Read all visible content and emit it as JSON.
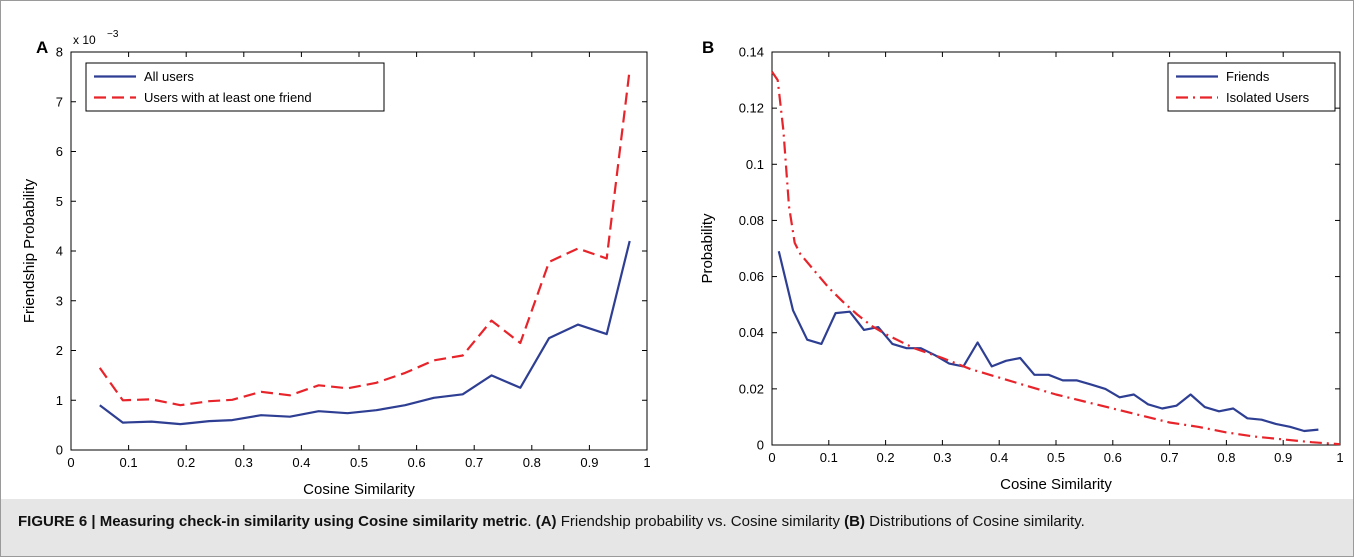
{
  "caption": {
    "label": "FIGURE 6 | Measuring check-in similarity using Cosine similarity metric",
    "sep": ". ",
    "a_tag": "(A)",
    "a_text": " Friendship probability vs. Cosine similarity ",
    "b_tag": "(B)",
    "b_text": " Distributions of Cosine similarity."
  },
  "chart_data": [
    {
      "panel": "A",
      "type": "line",
      "xlabel": "Cosine Similarity",
      "ylabel": "Friendship Probability",
      "yexponent": "x 10",
      "yexponent_power": "−3",
      "xlim": [
        0,
        1
      ],
      "ylim": [
        0,
        8
      ],
      "xticks": [
        "0",
        "0.1",
        "0.2",
        "0.3",
        "0.4",
        "0.5",
        "0.6",
        "0.7",
        "0.8",
        "0.9",
        "1"
      ],
      "yticks": [
        "0",
        "1",
        "2",
        "3",
        "4",
        "5",
        "6",
        "7",
        "8"
      ],
      "grid": false,
      "legend_position": "top-left",
      "series": [
        {
          "name": "All users",
          "color": "#2e3f93",
          "style": "solid",
          "x": [
            0.05,
            0.09,
            0.14,
            0.19,
            0.24,
            0.28,
            0.33,
            0.38,
            0.43,
            0.48,
            0.53,
            0.58,
            0.63,
            0.68,
            0.73,
            0.78,
            0.83,
            0.88,
            0.93,
            0.97
          ],
          "y": [
            0.9,
            0.55,
            0.57,
            0.52,
            0.58,
            0.6,
            0.7,
            0.67,
            0.78,
            0.74,
            0.8,
            0.9,
            1.05,
            1.12,
            1.5,
            1.25,
            2.25,
            2.52,
            2.33,
            4.2
          ]
        },
        {
          "name": "Users with at least one friend",
          "color": "#e8242b",
          "style": "dashed",
          "x": [
            0.05,
            0.09,
            0.14,
            0.19,
            0.24,
            0.28,
            0.33,
            0.38,
            0.43,
            0.48,
            0.53,
            0.58,
            0.63,
            0.68,
            0.73,
            0.78,
            0.83,
            0.88,
            0.93,
            0.97
          ],
          "y": [
            1.65,
            1.0,
            1.02,
            0.9,
            0.98,
            1.01,
            1.17,
            1.1,
            1.3,
            1.24,
            1.35,
            1.55,
            1.8,
            1.9,
            2.6,
            2.15,
            3.78,
            4.05,
            3.85,
            7.65
          ]
        }
      ]
    },
    {
      "panel": "B",
      "type": "line",
      "xlabel": "Cosine Similarity",
      "ylabel": "Probability",
      "xlim": [
        0,
        1
      ],
      "ylim": [
        0,
        0.14
      ],
      "xticks": [
        "0",
        "0.1",
        "0.2",
        "0.3",
        "0.4",
        "0.5",
        "0.6",
        "0.7",
        "0.8",
        "0.9",
        "1"
      ],
      "yticks": [
        "0",
        "0.02",
        "0.04",
        "0.06",
        "0.08",
        "0.1",
        "0.12",
        "0.14"
      ],
      "grid": false,
      "legend_position": "top-right",
      "series": [
        {
          "name": "Friends",
          "color": "#2e3f93",
          "style": "solid",
          "x": [
            0.012,
            0.037,
            0.062,
            0.087,
            0.112,
            0.137,
            0.162,
            0.187,
            0.212,
            0.237,
            0.262,
            0.287,
            0.312,
            0.337,
            0.362,
            0.387,
            0.412,
            0.437,
            0.462,
            0.487,
            0.512,
            0.537,
            0.562,
            0.587,
            0.612,
            0.637,
            0.662,
            0.687,
            0.712,
            0.737,
            0.762,
            0.787,
            0.812,
            0.837,
            0.862,
            0.887,
            0.912,
            0.937,
            0.962
          ],
          "y": [
            0.069,
            0.048,
            0.0375,
            0.036,
            0.047,
            0.0475,
            0.041,
            0.042,
            0.036,
            0.0345,
            0.0345,
            0.032,
            0.029,
            0.028,
            0.0365,
            0.028,
            0.03,
            0.031,
            0.025,
            0.025,
            0.023,
            0.023,
            0.0215,
            0.02,
            0.017,
            0.018,
            0.0145,
            0.013,
            0.014,
            0.018,
            0.0135,
            0.012,
            0.013,
            0.0095,
            0.009,
            0.0075,
            0.0065,
            0.005,
            0.0055
          ]
        },
        {
          "name": "Isolated Users",
          "color": "#e8242b",
          "style": "dashdot",
          "x": [
            0.0,
            0.01,
            0.02,
            0.03,
            0.04,
            0.05,
            0.075,
            0.1,
            0.125,
            0.15,
            0.175,
            0.2,
            0.25,
            0.3,
            0.35,
            0.4,
            0.45,
            0.5,
            0.55,
            0.6,
            0.65,
            0.7,
            0.75,
            0.8,
            0.85,
            0.9,
            0.95,
            1.0
          ],
          "y": [
            0.133,
            0.13,
            0.112,
            0.085,
            0.072,
            0.068,
            0.062,
            0.056,
            0.051,
            0.0465,
            0.0425,
            0.0395,
            0.0345,
            0.031,
            0.027,
            0.024,
            0.021,
            0.018,
            0.0155,
            0.013,
            0.0105,
            0.008,
            0.0065,
            0.0045,
            0.003,
            0.002,
            0.001,
            0.0003
          ]
        }
      ]
    }
  ]
}
